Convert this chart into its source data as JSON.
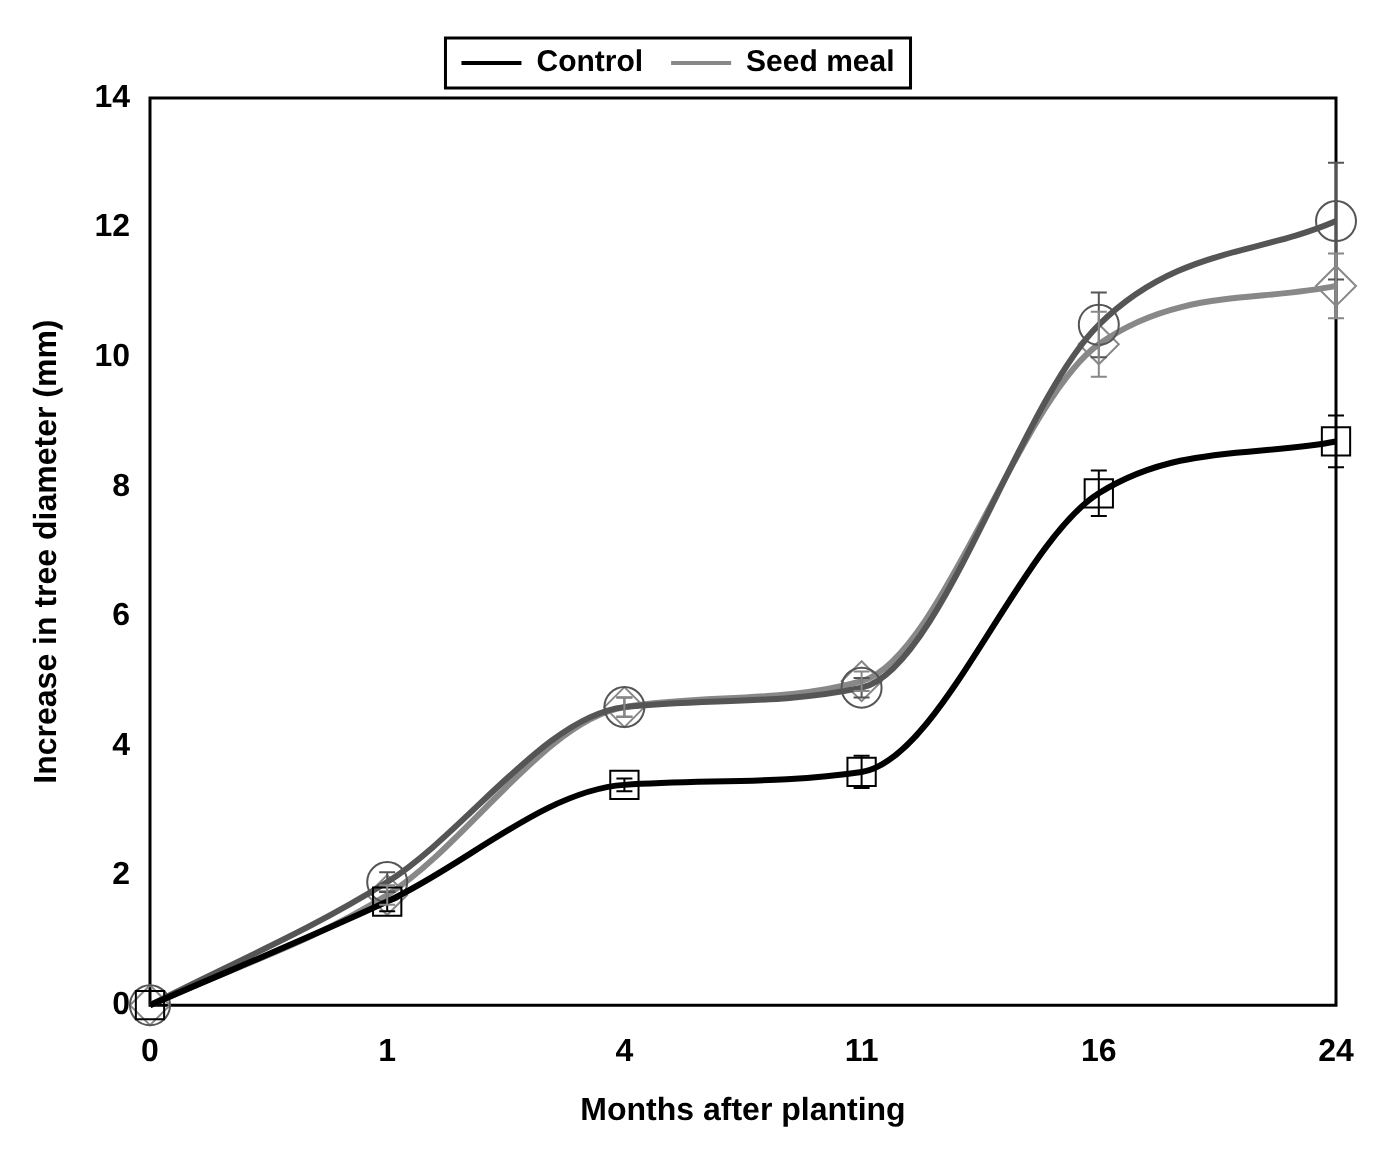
{
  "chart_data": {
    "type": "line",
    "xlabel": "Months after planting",
    "ylabel": "Increase in tree diameter (mm)",
    "categories": [
      "0",
      "1",
      "4",
      "11",
      "16",
      "24"
    ],
    "series": [
      {
        "name": "Control",
        "color": "#000000",
        "marker": "square",
        "values": [
          0,
          1.6,
          3.4,
          3.6,
          7.9,
          8.7
        ],
        "errors": [
          null,
          0.15,
          0.1,
          0.25,
          0.35,
          0.4
        ]
      },
      {
        "color": "#555555",
        "marker": "circle",
        "values": [
          0,
          1.9,
          4.6,
          4.9,
          10.5,
          12.1
        ],
        "errors": [
          null,
          0.15,
          0.15,
          0.15,
          0.5,
          0.9
        ]
      },
      {
        "name": "Seed meal",
        "color": "#888888",
        "marker": "diamond",
        "values": [
          0,
          1.7,
          4.6,
          5.0,
          10.2,
          11.1
        ],
        "errors": [
          null,
          0.15,
          0.15,
          0.15,
          0.5,
          0.5
        ]
      }
    ],
    "ylim": [
      0,
      14
    ],
    "yticks": [
      0,
      2,
      4,
      6,
      8,
      10,
      12,
      14
    ],
    "grid": false,
    "legend": "top"
  }
}
